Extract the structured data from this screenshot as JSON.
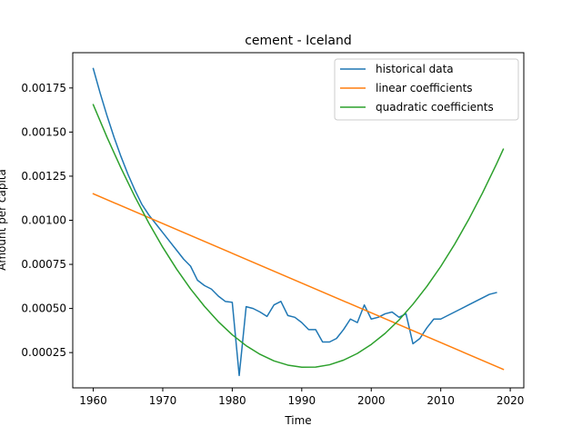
{
  "chart_data": {
    "type": "line",
    "title": "cement - Iceland",
    "xlabel": "Time",
    "ylabel": "Amount per capita",
    "xlim": [
      1957.05,
      2021.95
    ],
    "ylim": [
      5e-05,
      0.00195
    ],
    "xticks": [
      1960,
      1970,
      1980,
      1990,
      2000,
      2010,
      2020
    ],
    "xtick_labels": [
      "1960",
      "1970",
      "1980",
      "1990",
      "2000",
      "2010",
      "2020"
    ],
    "yticks": [
      0.00025,
      0.0005,
      0.00075,
      0.001,
      0.00125,
      0.0015,
      0.00175
    ],
    "ytick_labels": [
      "0.00025",
      "0.00050",
      "0.00075",
      "0.00100",
      "0.00125",
      "0.00150",
      "0.00175"
    ],
    "grid": false,
    "legend_position": "top-right",
    "series": [
      {
        "name": "historical data",
        "color": "#1f77b4",
        "x": [
          1960,
          1961,
          1962,
          1963,
          1964,
          1965,
          1966,
          1967,
          1968,
          1969,
          1970,
          1971,
          1972,
          1973,
          1974,
          1975,
          1976,
          1977,
          1978,
          1979,
          1980,
          1981,
          1982,
          1983,
          1984,
          1985,
          1986,
          1987,
          1988,
          1989,
          1990,
          1991,
          1992,
          1993,
          1994,
          1995,
          1996,
          1997,
          1998,
          1999,
          2000,
          2001,
          2002,
          2003,
          2004,
          2005,
          2006,
          2007,
          2008,
          2009,
          2010,
          2011,
          2012,
          2013,
          2014,
          2015,
          2016,
          2017,
          2018
        ],
        "y": [
          0.00186,
          0.00172,
          0.00159,
          0.00147,
          0.00136,
          0.00126,
          0.00117,
          0.00109,
          0.00103,
          0.00098,
          0.00093,
          0.00088,
          0.00083,
          0.00078,
          0.00074,
          0.00066,
          0.00063,
          0.00061,
          0.00057,
          0.00054,
          0.000535,
          0.00012,
          0.00051,
          0.0005,
          0.00048,
          0.000455,
          0.00052,
          0.00054,
          0.00046,
          0.00045,
          0.00042,
          0.00038,
          0.00038,
          0.00031,
          0.00031,
          0.00033,
          0.00038,
          0.00044,
          0.00042,
          0.00052,
          0.00044,
          0.00045,
          0.00047,
          0.00048,
          0.00045,
          0.00047,
          0.0003,
          0.00033,
          0.00039,
          0.00044,
          0.00044,
          0.00046,
          0.00048,
          0.0005,
          0.00052,
          0.00054,
          0.00056,
          0.00058,
          0.00059
        ]
      },
      {
        "name": "linear coefficients",
        "color": "#ff7f0e",
        "x": [
          1960,
          2019
        ],
        "y": [
          0.00115,
          0.000155
        ]
      },
      {
        "name": "quadratic coefficients",
        "color": "#2ca02c",
        "x": [
          1960,
          1962,
          1964,
          1966,
          1968,
          1970,
          1972,
          1974,
          1976,
          1978,
          1980,
          1982,
          1984,
          1986,
          1988,
          1990,
          1992,
          1994,
          1996,
          1998,
          2000,
          2002,
          2004,
          2006,
          2008,
          2010,
          2012,
          2014,
          2016,
          2018,
          2019
        ],
        "y": [
          0.001655,
          0.001469,
          0.001295,
          0.001133,
          0.000984,
          0.000847,
          0.000723,
          0.000611,
          0.000512,
          0.000425,
          0.000351,
          0.000289,
          0.00024,
          0.000203,
          0.000179,
          0.000167,
          0.000168,
          0.000181,
          0.000207,
          0.000245,
          0.000296,
          0.000359,
          0.000435,
          0.000524,
          0.000625,
          0.000738,
          0.000864,
          0.001003,
          0.001154,
          0.001317,
          0.001403
        ]
      }
    ]
  }
}
